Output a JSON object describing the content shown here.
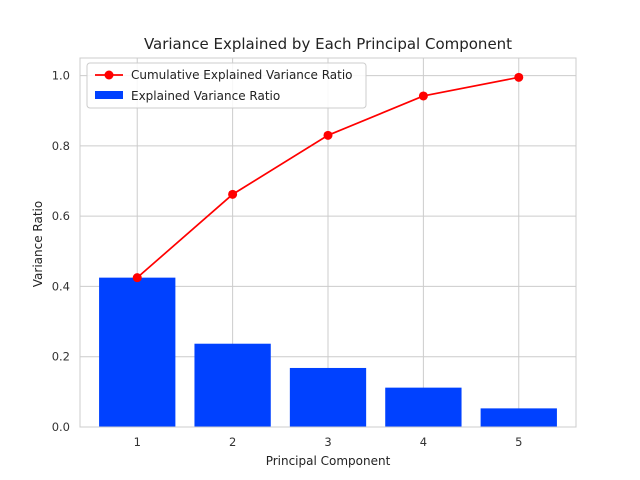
{
  "chart_data": {
    "type": "bar",
    "title": "Variance Explained by Each Principal Component",
    "xlabel": "Principal Component",
    "ylabel": "Variance Ratio",
    "categories": [
      "1",
      "2",
      "3",
      "4",
      "5"
    ],
    "x": [
      1,
      2,
      3,
      4,
      5
    ],
    "ylim": [
      0,
      1.05
    ],
    "yticks": [
      0.0,
      0.2,
      0.4,
      0.6,
      0.8,
      1.0
    ],
    "ytick_labels": [
      "0.0",
      "0.2",
      "0.4",
      "0.6",
      "0.8",
      "1.0"
    ],
    "grid": true,
    "legend_placement": "top-left",
    "series": [
      {
        "name": "Cumulative Explained Variance Ratio",
        "type": "line",
        "marker": "circle",
        "color": "#ff0000",
        "values": [
          0.425,
          0.662,
          0.83,
          0.942,
          0.995
        ]
      },
      {
        "name": "Explained Variance Ratio",
        "type": "bar",
        "color": "#0041ff",
        "values": [
          0.425,
          0.237,
          0.168,
          0.112,
          0.053
        ]
      }
    ]
  }
}
